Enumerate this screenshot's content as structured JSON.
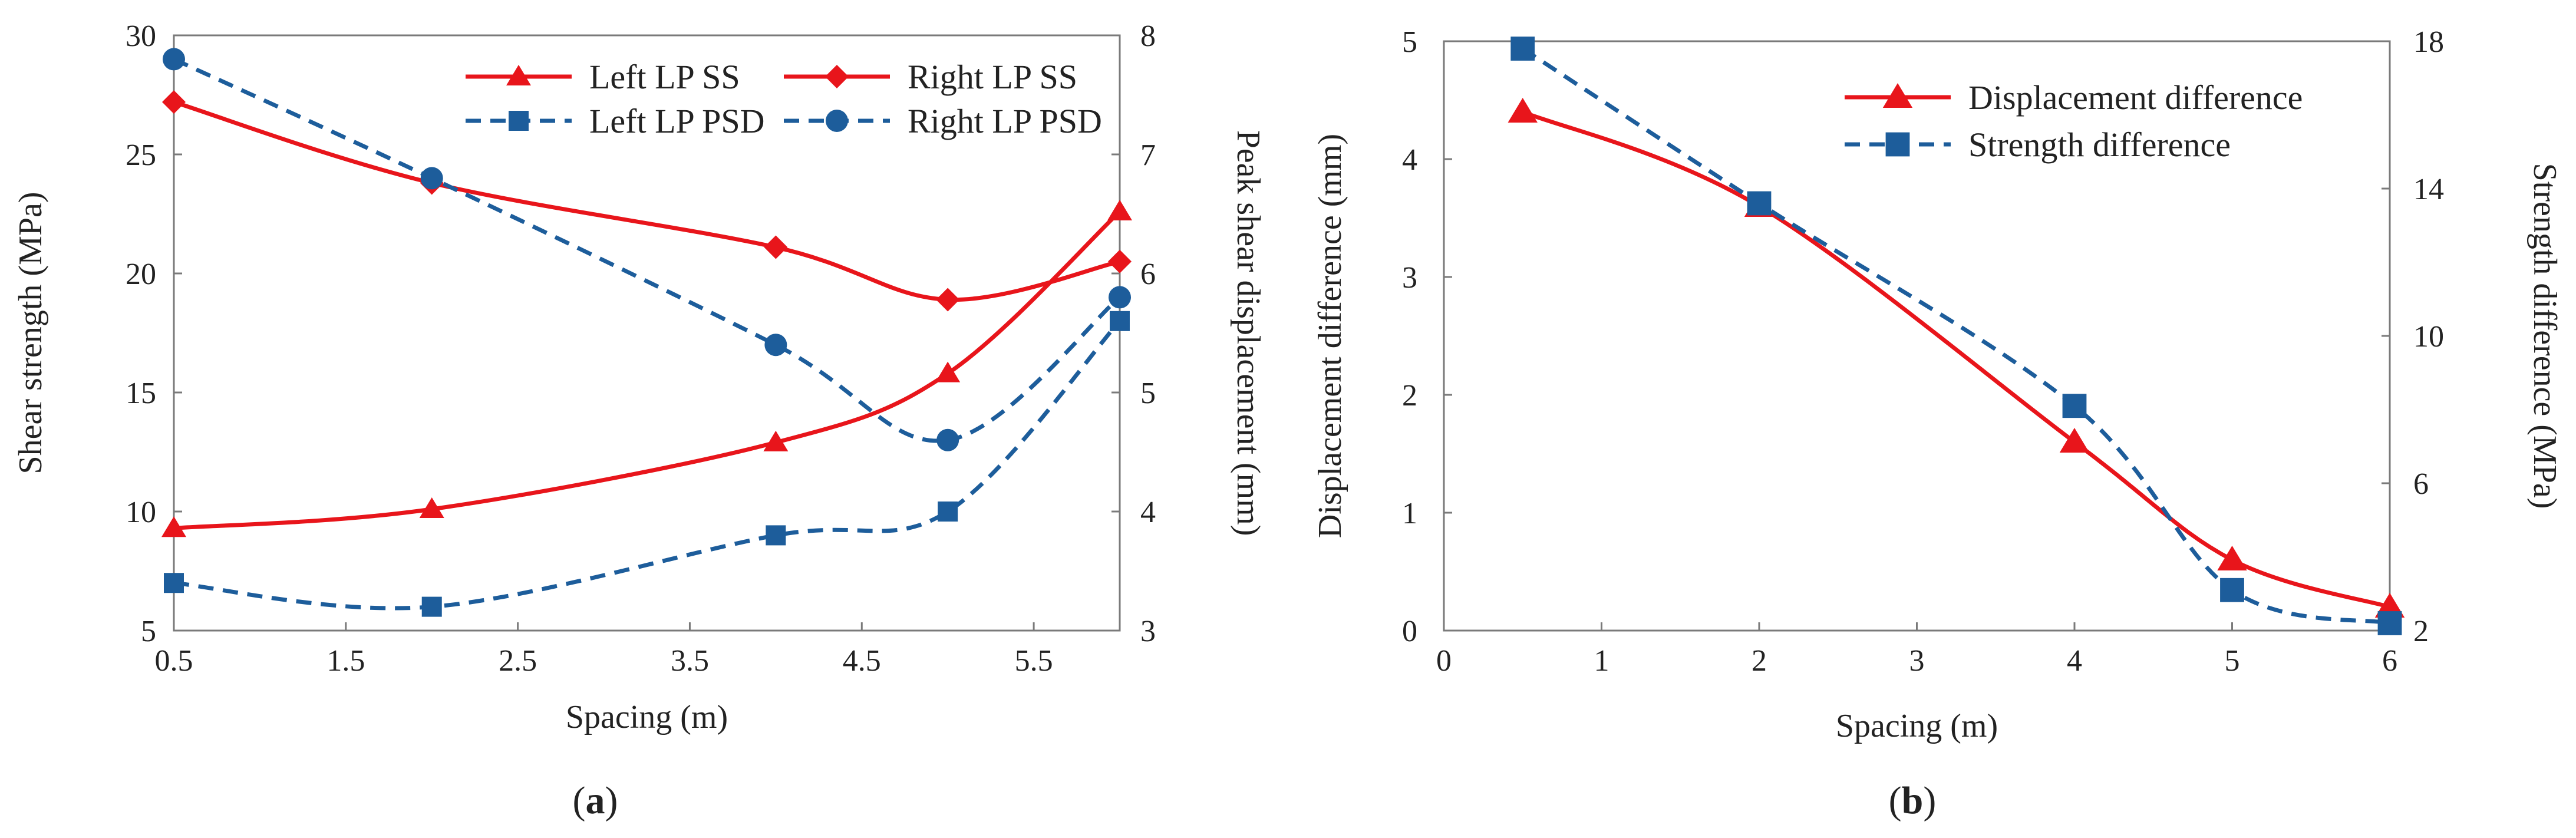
{
  "chart_data": [
    {
      "type": "line",
      "panel": "a",
      "title": "",
      "caption_open": "(",
      "caption_letter": "a",
      "caption_close": ")",
      "xlabel": "Spacing (m)",
      "ylabel_left": "Shear strength (MPa)",
      "ylabel_right": "Peak shear displacement (mm)",
      "xlim": [
        0.5,
        6
      ],
      "ylim_left": [
        5,
        30
      ],
      "ylim_right": [
        3,
        8
      ],
      "x_ticks": [
        0.5,
        1.5,
        2.5,
        3.5,
        4.5,
        5.5
      ],
      "x_tick_labels": [
        "0.5",
        "1.5",
        "2.5",
        "3.5",
        "4.5",
        "5.5"
      ],
      "y_left_ticks": [
        5,
        10,
        15,
        20,
        25,
        30
      ],
      "y_left_tick_labels": [
        "5",
        "10",
        "15",
        "20",
        "25",
        "30"
      ],
      "y_right_ticks": [
        3,
        4,
        5,
        6,
        7,
        8
      ],
      "y_right_tick_labels": [
        "3",
        "4",
        "5",
        "6",
        "7",
        "8"
      ],
      "grid": false,
      "legend_position": "top-right",
      "series": [
        {
          "name": "Left LP SS",
          "axis": "left",
          "color": "#e8151b",
          "dash": "solid",
          "marker": "triangle",
          "x": [
            0.5,
            2,
            4,
            5,
            6
          ],
          "values": [
            9.3,
            10.1,
            12.9,
            15.8,
            22.6
          ]
        },
        {
          "name": "Right LP SS",
          "axis": "left",
          "color": "#e8151b",
          "dash": "solid",
          "marker": "diamond",
          "x": [
            0.5,
            2,
            4,
            5,
            6
          ],
          "values": [
            27.2,
            23.8,
            21.1,
            18.9,
            20.5
          ]
        },
        {
          "name": "Left LP PSD",
          "axis": "right",
          "color": "#1d5d9b",
          "dash": "dashed",
          "marker": "square",
          "x": [
            0.5,
            2,
            4,
            5,
            6
          ],
          "values": [
            3.4,
            3.2,
            3.8,
            4.0,
            5.6
          ]
        },
        {
          "name": "Right LP PSD",
          "axis": "right",
          "color": "#1d5d9b",
          "dash": "dashed",
          "marker": "circle",
          "x": [
            0.5,
            2,
            4,
            5,
            6
          ],
          "values": [
            7.8,
            6.8,
            5.4,
            4.6,
            5.8
          ]
        }
      ]
    },
    {
      "type": "line",
      "panel": "b",
      "title": "",
      "caption_open": "(",
      "caption_letter": "b",
      "caption_close": ")",
      "xlabel": "Spacing (m)",
      "ylabel_left": "Displacement difference  (mm)",
      "ylabel_right": "Strength difference  (MPa)",
      "xlim": [
        0,
        6
      ],
      "ylim_left": [
        0,
        5
      ],
      "ylim_right": [
        2,
        18
      ],
      "x_ticks": [
        0,
        1,
        2,
        3,
        4,
        5,
        6
      ],
      "x_tick_labels": [
        "0",
        "1",
        "2",
        "3",
        "4",
        "5",
        "6"
      ],
      "y_left_ticks": [
        0,
        1,
        2,
        3,
        4,
        5
      ],
      "y_left_tick_labels": [
        "0",
        "1",
        "2",
        "3",
        "4",
        "5"
      ],
      "y_right_ticks": [
        2,
        6,
        10,
        14,
        18
      ],
      "y_right_tick_labels": [
        "2",
        "6",
        "10",
        "14",
        "18"
      ],
      "grid": false,
      "legend_position": "top-right",
      "series": [
        {
          "name": "Displacement difference",
          "axis": "left",
          "color": "#e8151b",
          "dash": "solid",
          "marker": "triangle",
          "x": [
            0.5,
            2,
            4,
            5,
            6
          ],
          "values": [
            4.4,
            3.6,
            1.6,
            0.6,
            0.2
          ]
        },
        {
          "name": "Strength difference",
          "axis": "right",
          "color": "#1d5d9b",
          "dash": "dashed",
          "marker": "square",
          "x": [
            0.5,
            2,
            4,
            5,
            6
          ],
          "values": [
            17.8,
            13.6,
            8.1,
            3.1,
            2.2
          ]
        }
      ]
    }
  ]
}
